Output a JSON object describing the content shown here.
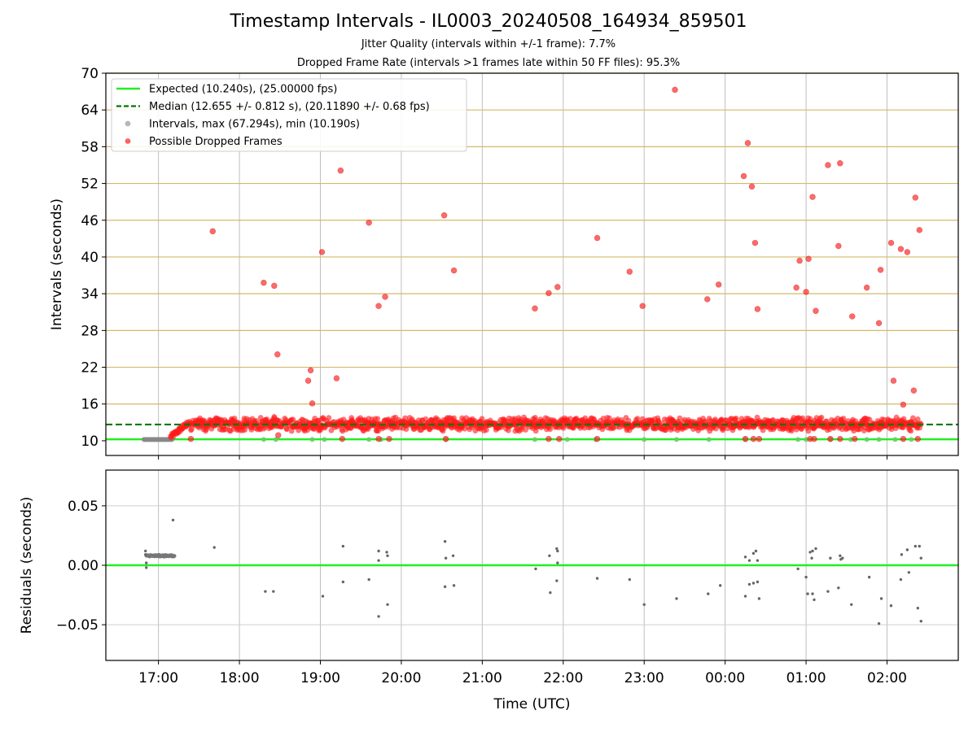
{
  "figure": {
    "title": "Timestamp Intervals - IL0003_20240508_164934_859501",
    "subtitle_1": "Jitter Quality (intervals within +/-1 frame): 7.7%",
    "subtitle_2": "Dropped Frame Rate (intervals >1 frames late within 50 FF files): 95.3%"
  },
  "chart_data": [
    {
      "type": "scatter",
      "panel": "top",
      "title": "",
      "xlabel": "",
      "ylabel": "Intervals (seconds)",
      "xlim_hours": [
        16.35,
        26.88
      ],
      "ylim": [
        7.6,
        70
      ],
      "x_tick_hours": [
        17,
        18,
        19,
        20,
        21,
        22,
        23,
        24,
        25,
        26
      ],
      "x_tick_labels": [
        "17:00",
        "18:00",
        "19:00",
        "20:00",
        "21:00",
        "22:00",
        "23:00",
        "00:00",
        "01:00",
        "02:00"
      ],
      "y_ticks": [
        10,
        16,
        22,
        28,
        34,
        40,
        46,
        52,
        58,
        64,
        70
      ],
      "grid": "on",
      "legend_position": "upper-left",
      "expected_interval": 10.24,
      "median_interval": 12.655,
      "legend": [
        {
          "label": "Expected (10.240s), (25.00000 fps)",
          "style": "line",
          "color": "#22ee22"
        },
        {
          "label": "Median (12.655 +/- 0.812 s), (20.11890 +/- 0.68 fps)",
          "style": "dashed",
          "color": "#007700"
        },
        {
          "label": "Intervals, max (67.294s), min (10.190s)",
          "style": "dot",
          "color": "#999999"
        },
        {
          "label": "Possible Dropped Frames",
          "style": "dot",
          "color": "#ff2020"
        }
      ],
      "band": {
        "description": "Dense band of dropped-frame intervals around the median",
        "x_start": 17.15,
        "x_end": 26.42,
        "center": 12.7,
        "spread": 0.8
      },
      "normal_intervals": [
        [
          16.83,
          10.2
        ],
        [
          16.9,
          10.2
        ],
        [
          16.95,
          10.2
        ],
        [
          17.0,
          10.2
        ],
        [
          17.05,
          10.2
        ],
        [
          17.1,
          10.2
        ],
        [
          18.3,
          10.2
        ],
        [
          18.45,
          10.2
        ],
        [
          18.9,
          10.2
        ],
        [
          19.05,
          10.2
        ],
        [
          19.6,
          10.2
        ],
        [
          19.75,
          10.2
        ],
        [
          20.55,
          10.2
        ],
        [
          21.65,
          10.2
        ],
        [
          22.05,
          10.2
        ],
        [
          22.4,
          10.2
        ],
        [
          23.0,
          10.2
        ],
        [
          23.4,
          10.2
        ],
        [
          23.8,
          10.2
        ],
        [
          24.25,
          10.2
        ],
        [
          24.9,
          10.2
        ],
        [
          25.0,
          10.2
        ],
        [
          25.3,
          10.2
        ],
        [
          25.55,
          10.2
        ],
        [
          25.75,
          10.2
        ],
        [
          25.9,
          10.2
        ],
        [
          26.1,
          10.2
        ],
        [
          26.3,
          10.2
        ]
      ],
      "dropped_outliers": [
        [
          17.67,
          44.2
        ],
        [
          18.3,
          35.8
        ],
        [
          18.43,
          35.3
        ],
        [
          18.47,
          24.1
        ],
        [
          18.85,
          19.8
        ],
        [
          18.88,
          21.5
        ],
        [
          18.9,
          16.1
        ],
        [
          19.02,
          40.8
        ],
        [
          19.2,
          20.2
        ],
        [
          19.25,
          54.1
        ],
        [
          19.6,
          45.6
        ],
        [
          19.72,
          32.0
        ],
        [
          19.8,
          33.5
        ],
        [
          20.53,
          46.8
        ],
        [
          20.65,
          37.8
        ],
        [
          21.65,
          31.6
        ],
        [
          21.82,
          34.1
        ],
        [
          21.93,
          35.1
        ],
        [
          22.42,
          43.1
        ],
        [
          22.82,
          37.6
        ],
        [
          22.98,
          32.0
        ],
        [
          23.38,
          67.3
        ],
        [
          23.78,
          33.1
        ],
        [
          23.92,
          35.5
        ],
        [
          24.23,
          53.2
        ],
        [
          24.28,
          58.6
        ],
        [
          24.33,
          51.5
        ],
        [
          24.37,
          42.3
        ],
        [
          24.4,
          31.5
        ],
        [
          24.88,
          35.0
        ],
        [
          24.92,
          39.4
        ],
        [
          25.0,
          34.3
        ],
        [
          25.03,
          39.7
        ],
        [
          25.08,
          49.8
        ],
        [
          25.12,
          31.2
        ],
        [
          25.27,
          55.0
        ],
        [
          25.42,
          55.3
        ],
        [
          25.4,
          41.8
        ],
        [
          25.57,
          30.3
        ],
        [
          25.75,
          35.0
        ],
        [
          25.9,
          29.2
        ],
        [
          25.92,
          37.9
        ],
        [
          26.05,
          42.3
        ],
        [
          26.08,
          19.8
        ],
        [
          26.17,
          41.3
        ],
        [
          26.2,
          15.9
        ],
        [
          26.25,
          40.8
        ],
        [
          26.33,
          18.2
        ],
        [
          26.35,
          49.7
        ],
        [
          26.4,
          44.4
        ],
        [
          18.48,
          10.9
        ],
        [
          17.4,
          10.3
        ],
        [
          19.27,
          10.3
        ],
        [
          19.72,
          10.3
        ],
        [
          19.85,
          10.3
        ],
        [
          20.55,
          10.3
        ],
        [
          21.82,
          10.3
        ],
        [
          21.95,
          10.3
        ],
        [
          22.42,
          10.3
        ],
        [
          24.25,
          10.3
        ],
        [
          24.35,
          10.3
        ],
        [
          24.42,
          10.3
        ],
        [
          25.05,
          10.3
        ],
        [
          25.1,
          10.3
        ],
        [
          25.3,
          10.3
        ],
        [
          25.42,
          10.3
        ],
        [
          25.6,
          10.3
        ],
        [
          26.2,
          10.3
        ],
        [
          26.38,
          10.3
        ]
      ]
    },
    {
      "type": "scatter",
      "panel": "bottom",
      "title": "",
      "xlabel": "Time (UTC)",
      "ylabel": "Residuals (seconds)",
      "xlim_hours": [
        16.35,
        26.88
      ],
      "ylim": [
        -0.08,
        0.08
      ],
      "y_ticks": [
        0.05,
        0.0,
        -0.05
      ],
      "y_tick_labels": [
        "0.05",
        "0.00",
        "−0.05"
      ],
      "x_tick_hours": [
        17,
        18,
        19,
        20,
        21,
        22,
        23,
        24,
        25,
        26
      ],
      "x_tick_labels": [
        "17:00",
        "18:00",
        "19:00",
        "20:00",
        "21:00",
        "22:00",
        "23:00",
        "00:00",
        "01:00",
        "02:00"
      ],
      "grid": "on",
      "zero_line": 0.0,
      "early_cluster": {
        "x_start": 16.85,
        "x_end": 17.2,
        "value": 0.008
      },
      "residuals": [
        [
          16.84,
          0.012
        ],
        [
          16.84,
          0.009
        ],
        [
          16.85,
          0.002
        ],
        [
          16.85,
          -0.002
        ],
        [
          17.18,
          0.038
        ],
        [
          17.69,
          0.015
        ],
        [
          18.32,
          -0.022
        ],
        [
          18.42,
          -0.022
        ],
        [
          19.03,
          -0.026
        ],
        [
          19.28,
          0.016
        ],
        [
          19.28,
          -0.014
        ],
        [
          19.6,
          -0.012
        ],
        [
          19.72,
          0.012
        ],
        [
          19.72,
          0.004
        ],
        [
          19.72,
          -0.043
        ],
        [
          19.82,
          0.011
        ],
        [
          19.83,
          0.008
        ],
        [
          19.83,
          -0.033
        ],
        [
          20.54,
          0.02
        ],
        [
          20.55,
          0.006
        ],
        [
          20.54,
          -0.018
        ],
        [
          20.64,
          0.008
        ],
        [
          20.65,
          -0.017
        ],
        [
          21.66,
          -0.003
        ],
        [
          21.83,
          0.008
        ],
        [
          21.84,
          -0.023
        ],
        [
          21.92,
          0.014
        ],
        [
          21.93,
          0.012
        ],
        [
          21.93,
          0.002
        ],
        [
          21.92,
          -0.013
        ],
        [
          22.42,
          -0.011
        ],
        [
          22.82,
          -0.012
        ],
        [
          23.0,
          -0.033
        ],
        [
          23.4,
          -0.028
        ],
        [
          23.79,
          -0.024
        ],
        [
          23.94,
          -0.017
        ],
        [
          24.25,
          0.007
        ],
        [
          24.25,
          -0.026
        ],
        [
          24.3,
          0.004
        ],
        [
          24.3,
          -0.016
        ],
        [
          24.35,
          0.01
        ],
        [
          24.35,
          -0.015
        ],
        [
          24.38,
          0.012
        ],
        [
          24.4,
          0.004
        ],
        [
          24.4,
          -0.014
        ],
        [
          24.42,
          -0.028
        ],
        [
          24.9,
          -0.003
        ],
        [
          25.0,
          -0.01
        ],
        [
          25.02,
          -0.024
        ],
        [
          25.05,
          0.011
        ],
        [
          25.07,
          0.006
        ],
        [
          25.08,
          0.012
        ],
        [
          25.08,
          -0.024
        ],
        [
          25.1,
          -0.029
        ],
        [
          25.12,
          0.014
        ],
        [
          25.27,
          -0.022
        ],
        [
          25.3,
          0.006
        ],
        [
          25.42,
          0.008
        ],
        [
          25.43,
          0.005
        ],
        [
          25.45,
          0.006
        ],
        [
          25.4,
          -0.019
        ],
        [
          25.56,
          -0.033
        ],
        [
          25.78,
          -0.01
        ],
        [
          25.9,
          -0.049
        ],
        [
          25.93,
          -0.028
        ],
        [
          26.05,
          -0.034
        ],
        [
          26.18,
          0.009
        ],
        [
          26.17,
          -0.012
        ],
        [
          26.25,
          0.013
        ],
        [
          26.27,
          -0.006
        ],
        [
          26.35,
          0.016
        ],
        [
          26.38,
          -0.036
        ],
        [
          26.4,
          0.016
        ],
        [
          26.42,
          0.006
        ],
        [
          26.42,
          -0.047
        ]
      ]
    }
  ]
}
